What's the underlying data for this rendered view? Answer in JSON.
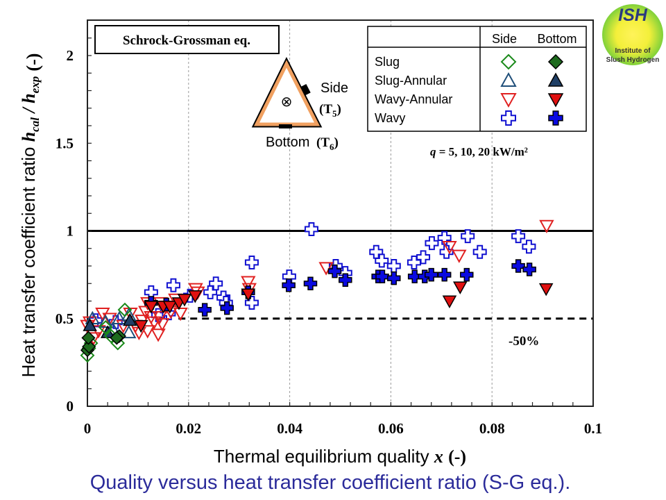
{
  "chart_data": {
    "type": "scatter",
    "title": "Quality versus heat transfer coefficient ratio (S-G eq.).",
    "xlabel": "Thermal equilibrium quality",
    "xlabel_var": "x",
    "xlabel_unit": "(-)",
    "ylabel": "Heat transfer coefficient ratio",
    "ylabel_var": "h_cal / h_exp",
    "ylabel_unit": "(-)",
    "xlim": [
      0,
      0.1
    ],
    "ylim": [
      0,
      2
    ],
    "xticks": [
      "0",
      "0.02",
      "0.04",
      "0.06",
      "0.08",
      "0.1"
    ],
    "xtick_values": [
      0,
      0.02,
      0.04,
      0.06,
      0.08,
      0.1
    ],
    "yticks": [
      "0",
      "0.5",
      "1",
      "1.5",
      "2"
    ],
    "ytick_values": [
      0,
      0.5,
      1,
      1.5,
      2
    ],
    "grid": "vertical dashed at major x ticks",
    "reference_lines": [
      {
        "y": 1.0,
        "style": "solid"
      },
      {
        "y": 0.5,
        "style": "dashed",
        "x_from": 0.018,
        "label": "-50%"
      }
    ],
    "method_label": "Schrock-Grossman eq.",
    "condition_label": "q = 5, 10, 20 kW/m²",
    "legend": {
      "placement": "top-right",
      "col_headers": [
        "Side",
        "Bottom"
      ],
      "rows": [
        "Slug",
        "Slug-Annular",
        "Wavy-Annular",
        "Wavy"
      ]
    },
    "series": [
      {
        "name": "Slug Side",
        "marker": "diamond",
        "filled": false,
        "color": "#1a8a1a",
        "fill": "none",
        "points": [
          [
            0.0,
            0.29
          ],
          [
            0.0003,
            0.33
          ],
          [
            0.0007,
            0.36
          ],
          [
            0.006,
            0.36
          ],
          [
            0.0036,
            0.45
          ],
          [
            0.0074,
            0.55
          ],
          [
            0.0047,
            0.4
          ]
        ]
      },
      {
        "name": "Slug Bottom",
        "marker": "diamond",
        "filled": true,
        "color": "#000000",
        "fill": "#1e6b1e",
        "points": [
          [
            0.0,
            0.32
          ],
          [
            0.0003,
            0.34
          ],
          [
            0.0002,
            0.39
          ],
          [
            0.0063,
            0.4
          ],
          [
            0.0058,
            0.39
          ]
        ]
      },
      {
        "name": "Slug-Annular Side",
        "marker": "triangle-up",
        "filled": false,
        "color": "#1f4e79",
        "fill": "none",
        "points": [
          [
            0.001,
            0.5
          ],
          [
            0.0036,
            0.48
          ],
          [
            0.005,
            0.44
          ],
          [
            0.0082,
            0.52
          ],
          [
            0.0082,
            0.42
          ],
          [
            0.0063,
            0.5
          ]
        ]
      },
      {
        "name": "Slug-Annular Bottom",
        "marker": "triangle-up",
        "filled": true,
        "color": "#000000",
        "fill": "#1f3f66",
        "points": [
          [
            0.0084,
            0.49
          ],
          [
            0.004,
            0.42
          ],
          [
            0.0005,
            0.46
          ]
        ]
      },
      {
        "name": "Wavy-Annular Side",
        "marker": "triangle-down",
        "filled": false,
        "color": "#e02020",
        "fill": "none",
        "points": [
          [
            0.0,
            0.46
          ],
          [
            0.0005,
            0.48
          ],
          [
            0.003,
            0.53
          ],
          [
            0.0012,
            0.39
          ],
          [
            0.0022,
            0.43
          ],
          [
            0.0044,
            0.5
          ],
          [
            0.0071,
            0.46
          ],
          [
            0.0085,
            0.53
          ],
          [
            0.0095,
            0.46
          ],
          [
            0.0102,
            0.42
          ],
          [
            0.0108,
            0.49
          ],
          [
            0.0115,
            0.54
          ],
          [
            0.0119,
            0.43
          ],
          [
            0.0126,
            0.51
          ],
          [
            0.0132,
            0.48
          ],
          [
            0.014,
            0.41
          ],
          [
            0.0143,
            0.51
          ],
          [
            0.0148,
            0.47
          ],
          [
            0.0156,
            0.57
          ],
          [
            0.0165,
            0.54
          ],
          [
            0.0174,
            0.61
          ],
          [
            0.0184,
            0.53
          ],
          [
            0.0214,
            0.67
          ],
          [
            0.0218,
            0.65
          ],
          [
            0.0318,
            0.71
          ],
          [
            0.032,
            0.67
          ],
          [
            0.0472,
            0.79
          ],
          [
            0.0716,
            0.91
          ],
          [
            0.0735,
            0.86
          ],
          [
            0.0908,
            1.03
          ],
          [
            0.0119,
            0.59
          ],
          [
            0.0145,
            0.59
          ]
        ]
      },
      {
        "name": "Wavy-Annular Bottom",
        "marker": "triangle-down",
        "filled": true,
        "color": "#000000",
        "fill": "#e01010",
        "points": [
          [
            0.0126,
            0.57
          ],
          [
            0.015,
            0.57
          ],
          [
            0.0163,
            0.57
          ],
          [
            0.0181,
            0.59
          ],
          [
            0.0192,
            0.61
          ],
          [
            0.0213,
            0.63
          ],
          [
            0.0318,
            0.64
          ],
          [
            0.0716,
            0.6
          ],
          [
            0.0737,
            0.68
          ],
          [
            0.0907,
            0.67
          ],
          [
            0.0106,
            0.46
          ]
        ]
      },
      {
        "name": "Wavy Side",
        "marker": "plus",
        "filled": false,
        "color": "#1010d0",
        "fill": "#ffffff",
        "points": [
          [
            0.0056,
            0.48
          ],
          [
            0.0016,
            0.49
          ],
          [
            0.0126,
            0.65
          ],
          [
            0.014,
            0.52
          ],
          [
            0.017,
            0.69
          ],
          [
            0.0161,
            0.53
          ],
          [
            0.0203,
            0.63
          ],
          [
            0.0243,
            0.65
          ],
          [
            0.0254,
            0.7
          ],
          [
            0.0269,
            0.62
          ],
          [
            0.0274,
            0.59
          ],
          [
            0.0325,
            0.82
          ],
          [
            0.0325,
            0.59
          ],
          [
            0.0399,
            0.74
          ],
          [
            0.0443,
            1.01
          ],
          [
            0.0491,
            0.8
          ],
          [
            0.051,
            0.76
          ],
          [
            0.0571,
            0.88
          ],
          [
            0.0582,
            0.83
          ],
          [
            0.0606,
            0.8
          ],
          [
            0.0646,
            0.82
          ],
          [
            0.0664,
            0.85
          ],
          [
            0.0681,
            0.93
          ],
          [
            0.0706,
            0.96
          ],
          [
            0.071,
            0.88
          ],
          [
            0.0752,
            0.97
          ],
          [
            0.0776,
            0.88
          ],
          [
            0.0852,
            0.97
          ],
          [
            0.0873,
            0.91
          ]
        ]
      },
      {
        "name": "Wavy Bottom",
        "marker": "plus",
        "filled": true,
        "color": "#000000",
        "fill": "#0a0ae0",
        "points": [
          [
            0.0126,
            0.59
          ],
          [
            0.0156,
            0.58
          ],
          [
            0.0232,
            0.55
          ],
          [
            0.0276,
            0.56
          ],
          [
            0.0318,
            0.65
          ],
          [
            0.0398,
            0.69
          ],
          [
            0.0441,
            0.7
          ],
          [
            0.0489,
            0.77
          ],
          [
            0.051,
            0.72
          ],
          [
            0.0575,
            0.74
          ],
          [
            0.0583,
            0.74
          ],
          [
            0.0606,
            0.73
          ],
          [
            0.0647,
            0.74
          ],
          [
            0.0667,
            0.74
          ],
          [
            0.068,
            0.75
          ],
          [
            0.0706,
            0.75
          ],
          [
            0.075,
            0.75
          ],
          [
            0.0852,
            0.8
          ],
          [
            0.0874,
            0.78
          ]
        ]
      }
    ]
  },
  "diagram": {
    "side_label": "Side",
    "side_sensor": "T",
    "side_sensor_sub": "5",
    "bottom_label": "Bottom",
    "bottom_sensor": "T",
    "bottom_sensor_sub": "6",
    "flow_symbol": "⊗",
    "tube_color": "#f0a060"
  },
  "logo": {
    "acronym": "ISH",
    "line1": "Institute of",
    "line2": "Slush Hydrogen"
  },
  "colors": {
    "title": "#2b2b9a"
  }
}
